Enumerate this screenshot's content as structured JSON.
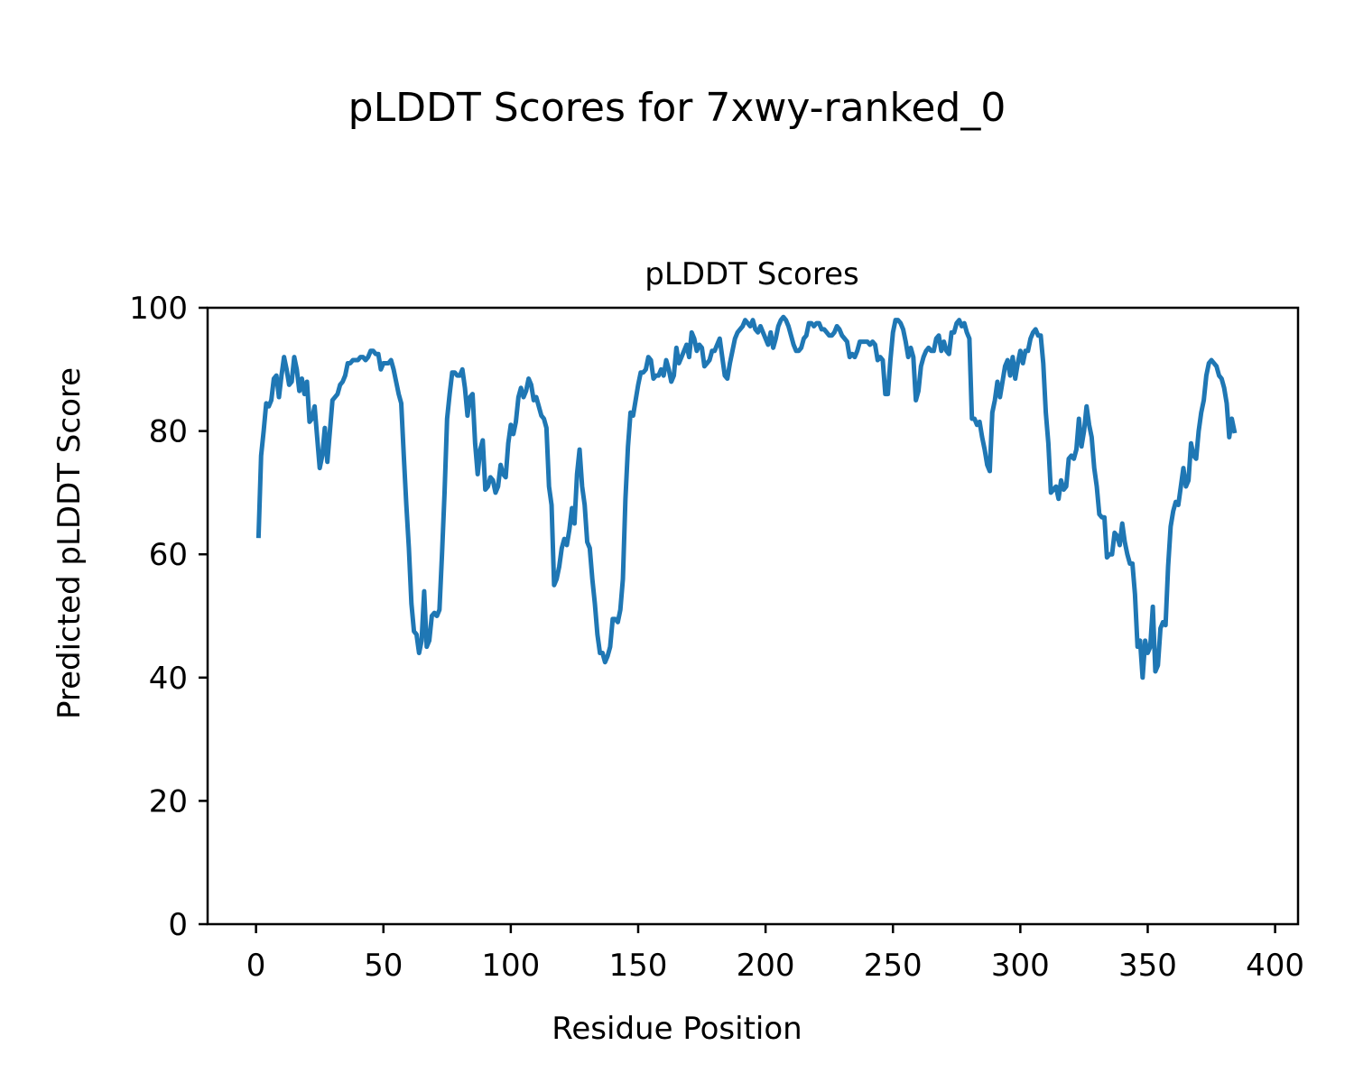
{
  "figure": {
    "suptitle": "pLDDT Scores for 7xwy-ranked_0"
  },
  "chart_data": {
    "type": "line",
    "title": "pLDDT Scores",
    "xlabel": "Residue Position",
    "ylabel": "Predicted pLDDT Score",
    "xlim": [
      -19,
      409
    ],
    "ylim": [
      0,
      100
    ],
    "xticks": [
      0,
      50,
      100,
      150,
      200,
      250,
      300,
      350,
      400
    ],
    "yticks": [
      0,
      20,
      40,
      60,
      80,
      100
    ],
    "grid": false,
    "line_color": "#1f77b4",
    "series": [
      {
        "name": "",
        "x_start": 1,
        "x_step": 1,
        "values": [
          63,
          76,
          80,
          84.5,
          84,
          85,
          88.5,
          89,
          85.5,
          89,
          92,
          90,
          87.5,
          88,
          92,
          90,
          86.5,
          88.5,
          86,
          88,
          81.5,
          82,
          84,
          79,
          74,
          76,
          80.5,
          75,
          80,
          85,
          85.5,
          86,
          87.5,
          88,
          89,
          91,
          91,
          91.5,
          91.5,
          91.5,
          92,
          92,
          91.5,
          92,
          93,
          93,
          92.5,
          92.5,
          90,
          91,
          91,
          91,
          91.5,
          90,
          88,
          86,
          84.5,
          76,
          68,
          61,
          52,
          47.5,
          47,
          44,
          46,
          54,
          45,
          46,
          50,
          50.5,
          50,
          51,
          60,
          70,
          82,
          86,
          89.5,
          89.5,
          89,
          89,
          90,
          87,
          82.5,
          85.5,
          86,
          78,
          73,
          77,
          78.5,
          70.5,
          71,
          72.5,
          72,
          70,
          71,
          74.5,
          73,
          72.5,
          78,
          81,
          79.5,
          81.5,
          85.5,
          87,
          85.5,
          86.5,
          88.5,
          87.5,
          85,
          85.5,
          84,
          82.5,
          82,
          80.5,
          71,
          68,
          55,
          56,
          58,
          61,
          62.5,
          61.5,
          64,
          67.5,
          65,
          73,
          77,
          71,
          68,
          62,
          61,
          56,
          52,
          47,
          44,
          44,
          42.5,
          43.5,
          45,
          49.5,
          49.5,
          49,
          51,
          56,
          69,
          77.5,
          83,
          82.5,
          85,
          87.5,
          89.5,
          89.5,
          90,
          92,
          91.5,
          88.5,
          89,
          89,
          90,
          89,
          91.5,
          90,
          88,
          89,
          93.5,
          91,
          92,
          93,
          94,
          92,
          96,
          95,
          93,
          94,
          93.5,
          90.5,
          91,
          91.5,
          93,
          93,
          94,
          95,
          92,
          89,
          88.5,
          91,
          93,
          95,
          96,
          96.5,
          97,
          98,
          97.5,
          97,
          98,
          96.5,
          96,
          97,
          96,
          95,
          94,
          96,
          93.5,
          95,
          97,
          98,
          98.5,
          98,
          97,
          95.5,
          94,
          93,
          93,
          93.5,
          95,
          95.5,
          97.5,
          97.5,
          97,
          97.5,
          97.5,
          96.5,
          96.5,
          96,
          95.5,
          95.5,
          96,
          97,
          96.5,
          95.5,
          95,
          94.5,
          92,
          92.5,
          92,
          93,
          94.5,
          94.5,
          94.5,
          94.5,
          94,
          94.5,
          94,
          91.5,
          92,
          91.5,
          86,
          86,
          91.5,
          96,
          98,
          98,
          97.5,
          96.5,
          94.5,
          92,
          93.5,
          92,
          85,
          86.5,
          90.5,
          92,
          93,
          93.5,
          93,
          93,
          95,
          95.5,
          93,
          94.5,
          93,
          92.5,
          96,
          96,
          97.5,
          98,
          97,
          97.5,
          96,
          95,
          82,
          82,
          81,
          81.5,
          79,
          77,
          74.5,
          73.5,
          83,
          85,
          88,
          85.5,
          88,
          90.5,
          91.5,
          89,
          92,
          88.5,
          91,
          93,
          91,
          93,
          93,
          95,
          96,
          96.5,
          95.5,
          95.5,
          91,
          83,
          78,
          70,
          70.5,
          71,
          69,
          72,
          70.5,
          71,
          75.5,
          76,
          75.5,
          77,
          82,
          77.5,
          80,
          84,
          81,
          79,
          74,
          71,
          66.5,
          66,
          66,
          59.5,
          60,
          60,
          63.5,
          63,
          61.5,
          65,
          62,
          60,
          58.5,
          58.5,
          53.5,
          45,
          46,
          40,
          46,
          44,
          45,
          51.5,
          41,
          42,
          48,
          49,
          48.5,
          58,
          64.5,
          67,
          68.5,
          68,
          71,
          74,
          71,
          72,
          78,
          76,
          75.5,
          80,
          83,
          85,
          89,
          91,
          91.5,
          91,
          90.5,
          89,
          88.5,
          87,
          84.5,
          79,
          82,
          80
        ]
      }
    ]
  }
}
